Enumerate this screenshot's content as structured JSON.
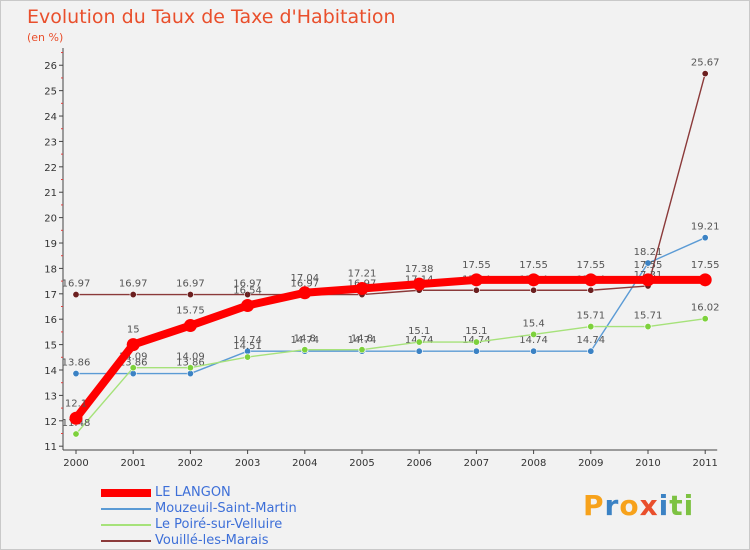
{
  "chart_data": {
    "type": "line",
    "title": "Evolution du Taux de Taxe d'Habitation",
    "subtitle": "(en %)",
    "xlabel": "",
    "ylabel": "(en %)",
    "categories": [
      "2000",
      "2001",
      "2002",
      "2003",
      "2004",
      "2005",
      "2006",
      "2007",
      "2008",
      "2009",
      "2010",
      "2011"
    ],
    "yticks": [
      "11",
      "12",
      "13",
      "14",
      "15",
      "16",
      "17",
      "18",
      "19",
      "20",
      "21",
      "22",
      "23",
      "24",
      "25",
      "26"
    ],
    "ylim": [
      10.85,
      26.6
    ],
    "grid": false,
    "legend_position": "bottom-left",
    "series": [
      {
        "key": "mouzeuil",
        "name": "Mouzeuil-Saint-Martin",
        "color": "#5b9bd5",
        "dot": "#3b82c4",
        "values": [
          13.86,
          13.86,
          13.86,
          14.74,
          14.74,
          14.74,
          14.74,
          14.74,
          14.74,
          14.74,
          18.21,
          19.21
        ],
        "labels": [
          "13.86",
          "13.86",
          "13.86",
          "14.74",
          "14.74",
          "14.74",
          "14.74",
          "14.74",
          "14.74",
          "14.74",
          "18.21",
          "19.21"
        ]
      },
      {
        "key": "poire",
        "name": "Le Poiré-sur-Velluire",
        "color": "#a6e27a",
        "dot": "#7dd13c",
        "values": [
          11.48,
          14.09,
          14.09,
          14.51,
          14.8,
          14.8,
          15.1,
          15.1,
          15.4,
          15.71,
          15.71,
          16.02
        ],
        "labels": [
          "11.48",
          "14.09",
          "14.09",
          "14.51",
          "14.8",
          "14.8",
          "15.1",
          "15.1",
          "15.4",
          "15.71",
          "15.71",
          "16.02"
        ]
      },
      {
        "key": "vouille",
        "name": "Vouillé-les-Marais",
        "color": "#8b3a3a",
        "dot": "#6b1f1f",
        "values": [
          16.97,
          16.97,
          16.97,
          16.97,
          16.97,
          16.97,
          17.14,
          17.14,
          17.14,
          17.14,
          17.31,
          25.67
        ],
        "labels": [
          "16.97",
          "16.97",
          "16.97",
          "16.97",
          "16.97",
          "16.97",
          "17.14",
          "17.14",
          "17.14",
          "17.14",
          "17.31",
          "25.67"
        ]
      },
      {
        "key": "langon",
        "name": "LE LANGON",
        "color": "#ff0000",
        "dot": "#ff0000",
        "values": [
          12.1,
          15,
          15.75,
          16.54,
          17.04,
          17.21,
          17.38,
          17.55,
          17.55,
          17.55,
          17.55,
          17.55
        ],
        "labels": [
          "12.1",
          "15",
          "15.75",
          "16.54",
          "17.04",
          "17.21",
          "17.38",
          "17.55",
          "17.55",
          "17.55",
          "17.55",
          "17.55"
        ]
      }
    ]
  },
  "legend": {
    "items": [
      {
        "label": "LE LANGON",
        "color": "#ff0000"
      },
      {
        "label": "Mouzeuil-Saint-Martin",
        "color": "#5b9bd5"
      },
      {
        "label": "Le Poiré-sur-Velluire",
        "color": "#a6e27a"
      },
      {
        "label": "Vouillé-les-Marais",
        "color": "#8b3a3a"
      }
    ]
  },
  "brand": {
    "letters": [
      "P",
      "r",
      "o",
      "x",
      "i",
      "t",
      "i"
    ],
    "colors": [
      "#f7a21b",
      "#3b82c4",
      "#f7a21b",
      "#e94f2c",
      "#3b82c4",
      "#7dc242",
      "#7dc242"
    ]
  }
}
